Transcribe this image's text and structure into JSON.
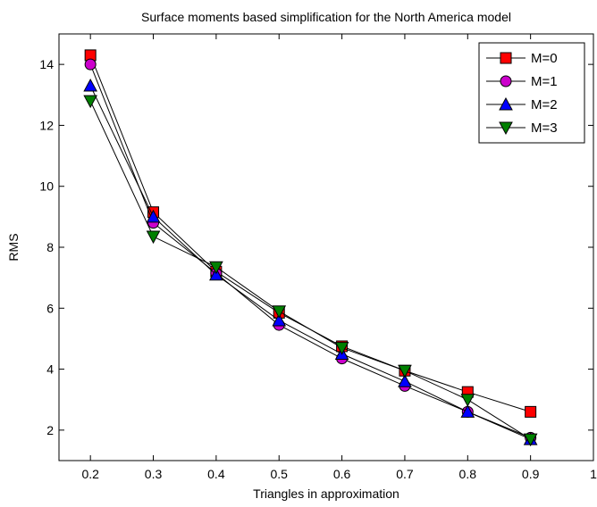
{
  "chart_data": {
    "type": "line",
    "title": "Surface moments based simplification for the North America model",
    "xlabel": "Triangles in approximation",
    "ylabel": "RMS",
    "xlim": [
      0.15,
      1.0
    ],
    "ylim": [
      1.0,
      15.0
    ],
    "xticks": [
      0.2,
      0.3,
      0.4,
      0.5,
      0.6,
      0.7,
      0.8,
      0.9,
      1
    ],
    "xtick_labels": [
      "0.2",
      "0.3",
      "0.4",
      "0.5",
      "0.6",
      "0.7",
      "0.8",
      "0.9",
      "1"
    ],
    "yticks": [
      2,
      4,
      6,
      8,
      10,
      12,
      14
    ],
    "ytick_labels": [
      "2",
      "4",
      "6",
      "8",
      "10",
      "12",
      "14"
    ],
    "grid": false,
    "legend_position": "top-right",
    "x": [
      0.2,
      0.3,
      0.4,
      0.5,
      0.6,
      0.7,
      0.8,
      0.9
    ],
    "series": [
      {
        "name": "M=0",
        "marker": "square",
        "color": "#ff0000",
        "values": [
          14.3,
          9.15,
          7.2,
          5.85,
          4.75,
          3.95,
          3.25,
          2.6
        ]
      },
      {
        "name": "M=1",
        "marker": "circle",
        "color": "#cc00cc",
        "values": [
          14.0,
          8.8,
          7.15,
          5.45,
          4.35,
          3.45,
          2.6,
          1.75
        ]
      },
      {
        "name": "M=2",
        "marker": "triangle-up",
        "color": "#0000ff",
        "values": [
          13.3,
          9.0,
          7.1,
          5.6,
          4.5,
          3.6,
          2.6,
          1.7
        ]
      },
      {
        "name": "M=3",
        "marker": "triangle-down",
        "color": "#008000",
        "values": [
          12.8,
          8.35,
          7.35,
          5.9,
          4.7,
          3.95,
          3.0,
          1.7
        ]
      }
    ]
  }
}
